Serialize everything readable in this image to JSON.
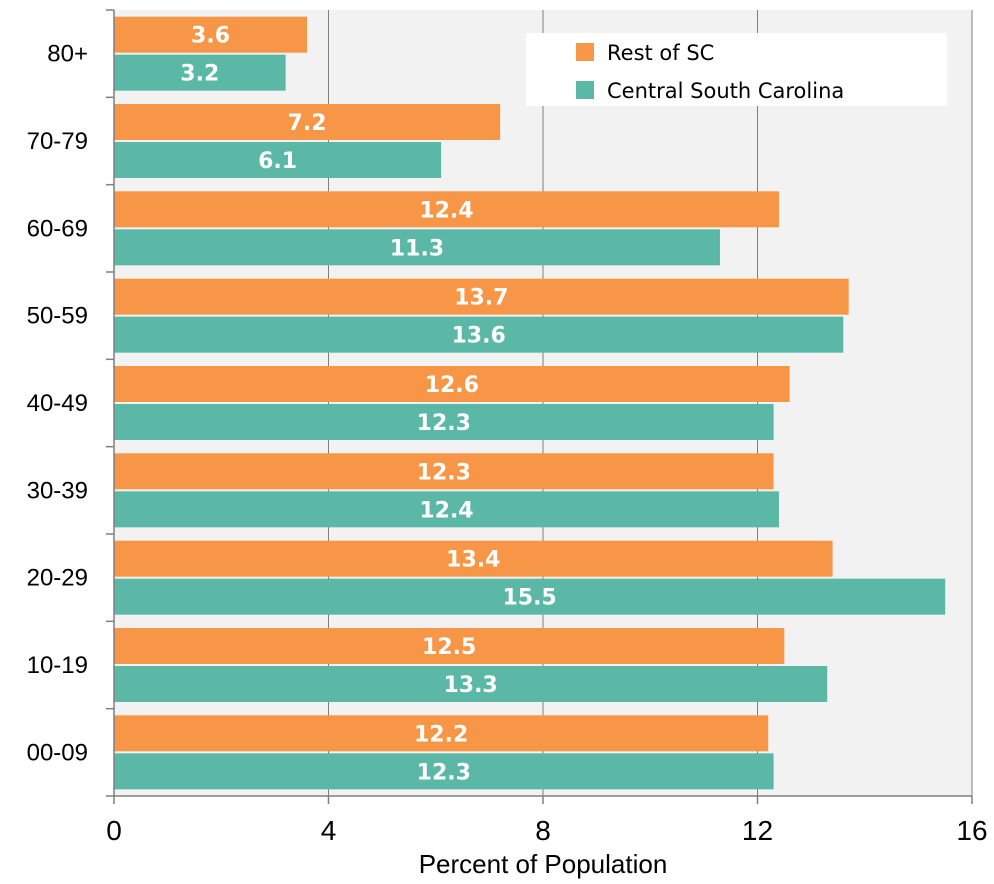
{
  "chart_data": {
    "type": "bar",
    "orientation": "horizontal",
    "categories": [
      "80+",
      "70-79",
      "60-69",
      "50-59",
      "40-49",
      "30-39",
      "20-29",
      "10-19",
      "00-09"
    ],
    "series": [
      {
        "name": "Rest of SC",
        "color": "#F79646",
        "values": [
          3.6,
          7.2,
          12.4,
          13.7,
          12.6,
          12.3,
          13.4,
          12.5,
          12.2
        ]
      },
      {
        "name": "Central South Carolina",
        "color": "#5BB8A6",
        "values": [
          3.2,
          6.1,
          11.3,
          13.6,
          12.3,
          12.4,
          15.5,
          13.3,
          12.3
        ]
      }
    ],
    "xlabel": "Percent of Population",
    "ylabel": "",
    "xlim": [
      0,
      16
    ],
    "xticks": [
      "0",
      "4",
      "8",
      "12",
      "16"
    ],
    "grid": "vertical",
    "legend_position": "top-right",
    "plot_background": "#F2F2F2"
  }
}
